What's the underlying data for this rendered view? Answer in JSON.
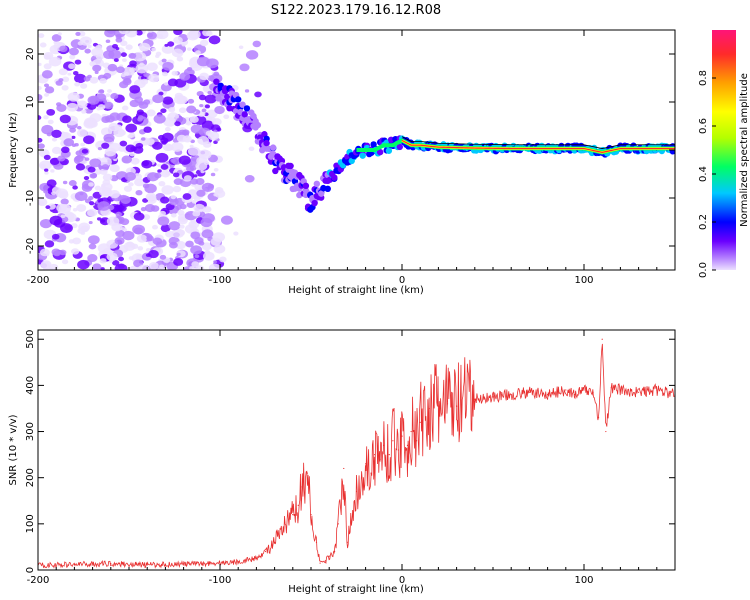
{
  "title": "S122.2023.179.16.12.R08",
  "chart_data": [
    {
      "type": "heatmap",
      "name": "spectrogram",
      "xlabel": "Height of straight line (km)",
      "ylabel": "Frequency (Hz)",
      "xlim": [
        -200,
        150
      ],
      "ylim": [
        -25,
        25
      ],
      "x_ticks": [
        -200,
        -100,
        0,
        100
      ],
      "x_tick_labels": [
        "-200",
        "-100",
        "0",
        "100"
      ],
      "y_ticks": [
        -20,
        -10,
        0,
        10,
        20
      ],
      "y_tick_labels": [
        "-20",
        "-10",
        "0",
        "10",
        "20"
      ],
      "ridge_line": {
        "x": [
          -100,
          -95,
          -90,
          -85,
          -80,
          -75,
          -70,
          -65,
          -60,
          -55,
          -50,
          -45,
          -40,
          -35,
          -30,
          -25,
          -20,
          -15,
          -10,
          -5,
          0,
          5,
          10,
          20,
          40,
          60,
          80,
          100,
          110,
          120,
          150
        ],
        "y": [
          12,
          11,
          9,
          7,
          4,
          1,
          -2,
          -4,
          -6,
          -8,
          -11,
          -8,
          -6,
          -4,
          -2,
          0,
          0,
          0,
          1,
          1,
          2,
          1,
          1,
          0.6,
          0.4,
          0.3,
          0.3,
          0.3,
          -0.5,
          0.3,
          0.3
        ]
      },
      "colorbar": {
        "label": "Normalized spectral amplitude",
        "range": [
          0,
          1
        ],
        "ticks": [
          0.0,
          0.2,
          0.4,
          0.6,
          0.8
        ],
        "tick_labels": [
          "0.0",
          "0.2",
          "0.4",
          "0.6",
          "0.8"
        ],
        "colors": [
          "#ece0ff",
          "#b480ff",
          "#6a00ff",
          "#0000ff",
          "#00c8ff",
          "#00ff64",
          "#b4ff00",
          "#ffff00",
          "#ffa000",
          "#ff2a2a",
          "#ff1478"
        ]
      }
    },
    {
      "type": "line",
      "name": "snr",
      "xlabel": "Height of straight line (km)",
      "ylabel": "SNR (10 * v/v)",
      "xlim": [
        -200,
        150
      ],
      "ylim": [
        0,
        520
      ],
      "x_ticks": [
        -200,
        -100,
        0,
        100
      ],
      "x_tick_labels": [
        "-200",
        "-100",
        "0",
        "100"
      ],
      "y_ticks": [
        0,
        100,
        200,
        300,
        400,
        500
      ],
      "y_tick_labels": [
        "0",
        "100",
        "200",
        "300",
        "400",
        "500"
      ],
      "color": "#e83030",
      "series": [
        {
          "name": "SNR",
          "x": [
            -200,
            -180,
            -160,
            -140,
            -120,
            -100,
            -90,
            -80,
            -75,
            -70,
            -65,
            -60,
            -57,
            -55,
            -52,
            -50,
            -47,
            -45,
            -42,
            -40,
            -37,
            -35,
            -32,
            -30,
            -27,
            -25,
            -22,
            -20,
            -17,
            -15,
            -12,
            -10,
            -7,
            -5,
            -2,
            0,
            3,
            5,
            8,
            10,
            15,
            20,
            25,
            30,
            40,
            50,
            60,
            70,
            80,
            90,
            95,
            100,
            105,
            108,
            110,
            112,
            115,
            120,
            130,
            140,
            150
          ],
          "y": [
            10,
            12,
            14,
            11,
            13,
            15,
            18,
            25,
            40,
            60,
            90,
            120,
            140,
            180,
            210,
            120,
            60,
            15,
            20,
            30,
            40,
            100,
            220,
            60,
            120,
            170,
            200,
            230,
            210,
            250,
            240,
            270,
            250,
            280,
            260,
            290,
            270,
            300,
            280,
            320,
            350,
            355,
            360,
            355,
            370,
            375,
            380,
            385,
            380,
            390,
            380,
            390,
            385,
            330,
            500,
            300,
            395,
            390,
            385,
            390,
            380
          ]
        }
      ]
    }
  ]
}
